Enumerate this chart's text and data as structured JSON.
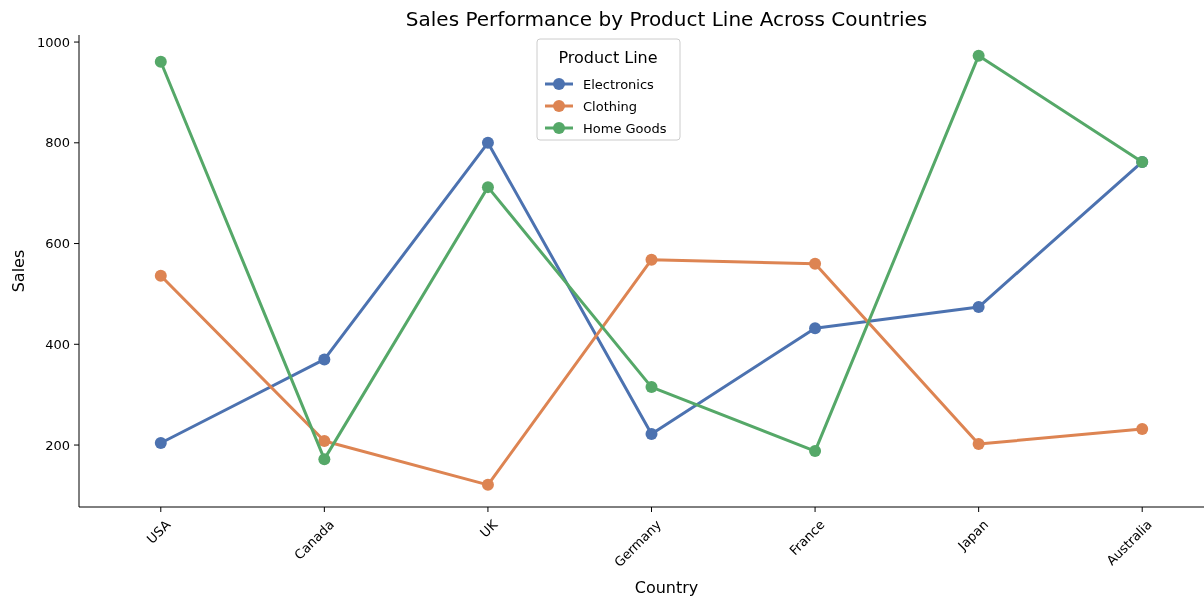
{
  "chart_data": {
    "type": "line",
    "title": "Sales Performance by Product Line Across Countries",
    "xlabel": "Country",
    "ylabel": "Sales",
    "legend_title": "Product Line",
    "legend": "top",
    "marker": "circle",
    "line_style": "solid",
    "grid": false,
    "categories": [
      "USA",
      "Canada",
      "UK",
      "Germany",
      "France",
      "Japan",
      "Australia"
    ],
    "ylim": [
      77,
      1014
    ],
    "yticks": [
      200,
      400,
      600,
      800,
      1000
    ],
    "series": [
      {
        "name": "Electronics",
        "color": "#4c72b0",
        "values": [
          204,
          370,
          800,
          222,
          432,
          474,
          762
        ]
      },
      {
        "name": "Clothing",
        "color": "#dd8452",
        "values": [
          536,
          208,
          121,
          568,
          560,
          202,
          232
        ]
      },
      {
        "name": "Home Goods",
        "color": "#55a868",
        "values": [
          961,
          172,
          712,
          315,
          188,
          973,
          762
        ]
      }
    ]
  }
}
